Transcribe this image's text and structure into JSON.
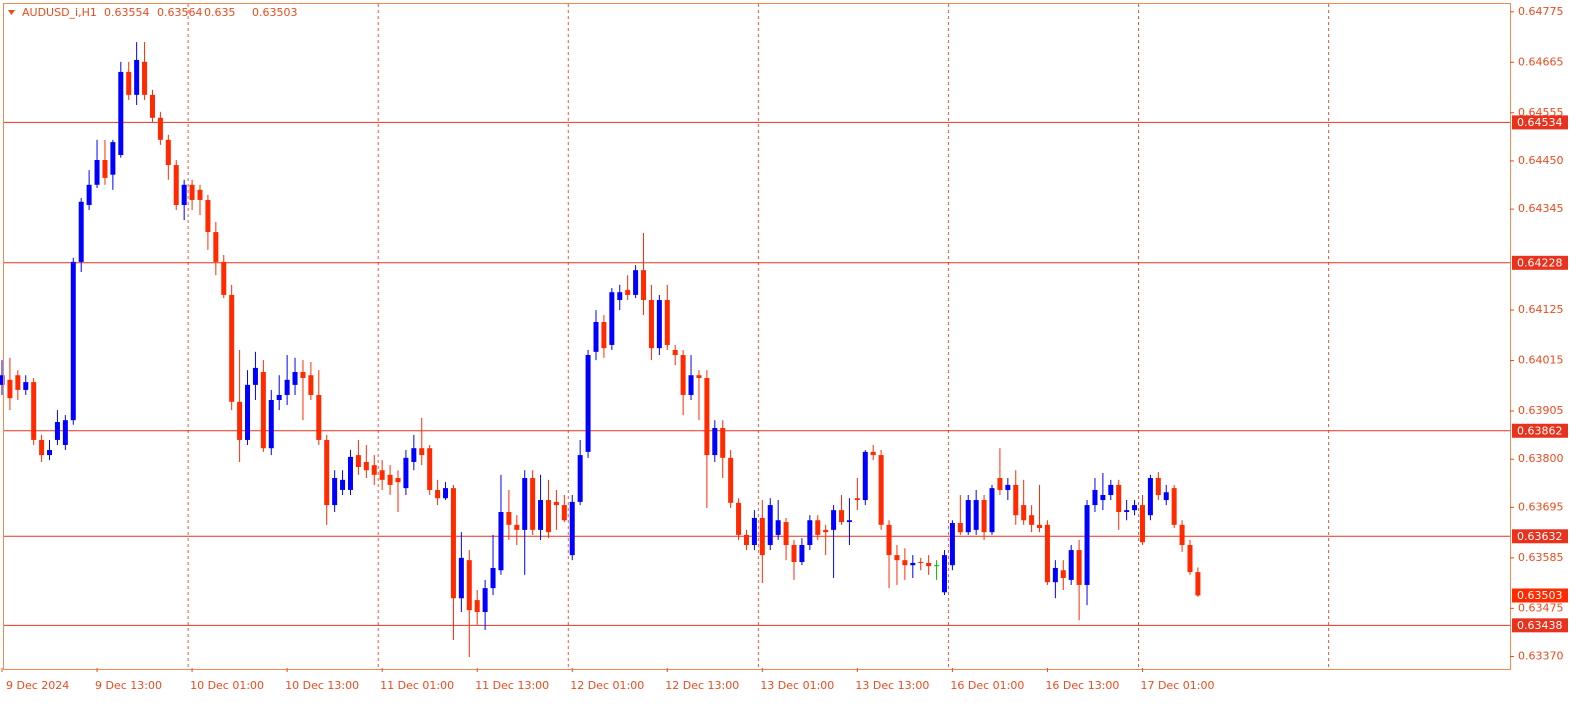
{
  "chart_data": {
    "type": "candlestick",
    "symbol": "AUDUSD_i,H1",
    "categories": [
      "9 Dec 2024",
      null,
      null,
      null,
      null,
      null,
      null,
      null,
      null,
      null,
      null,
      null,
      "9 Dec 13:00",
      null,
      null,
      null,
      null,
      null,
      null,
      null,
      null,
      null,
      null,
      null,
      "10 Dec 01:00",
      null,
      null,
      null,
      null,
      null,
      null,
      null,
      null,
      null,
      null,
      null,
      "10 Dec 13:00",
      null,
      null,
      null,
      null,
      null,
      null,
      null,
      null,
      null,
      null,
      null,
      "11 Dec 01:00",
      null,
      null,
      null,
      null,
      null,
      null,
      null,
      null,
      null,
      null,
      null,
      "11 Dec 13:00",
      null,
      null,
      null,
      null,
      null,
      null,
      null,
      null,
      null,
      null,
      null,
      "12 Dec 01:00",
      null,
      null,
      null,
      null,
      null,
      null,
      null,
      null,
      null,
      null,
      null,
      "12 Dec 13:00",
      null,
      null,
      null,
      null,
      null,
      null,
      null,
      null,
      null,
      null,
      null,
      "13 Dec 01:00",
      null,
      null,
      null,
      null,
      null,
      null,
      null,
      null,
      null,
      null,
      null,
      "13 Dec 13:00",
      null,
      null,
      null,
      null,
      null,
      null,
      null,
      null,
      null,
      null,
      null,
      "16 Dec 01:00",
      null,
      null,
      null,
      null,
      null,
      null,
      null,
      null,
      null,
      null,
      null,
      "16 Dec 13:00",
      null,
      null,
      null,
      null,
      null,
      null,
      null,
      null,
      null,
      null,
      null,
      "17 Dec 01:00",
      null,
      null,
      null,
      null,
      null,
      null,
      null
    ],
    "open": [
      0.63962,
      0.63973,
      0.63983,
      0.63951,
      0.63968,
      0.63842,
      0.63809,
      0.63842,
      0.63831,
      0.63885,
      0.6423,
      0.64354,
      0.64398,
      0.64452,
      0.6442,
      0.64463,
      0.64644,
      0.64594,
      0.64666,
      0.64594,
      0.64544,
      0.64496,
      0.64441,
      0.64354,
      0.64398,
      0.64387,
      0.64365,
      0.64295,
      0.6423,
      0.64158,
      0.63925,
      0.63842,
      0.63962,
      0.6399,
      0.63824,
      0.63929,
      0.6394,
      0.63962,
      0.6399,
      0.63983,
      0.6394,
      0.63842,
      0.637,
      0.63733,
      0.63733,
      0.63809,
      0.63794,
      0.63787,
      0.63776,
      0.63766,
      0.63759,
      0.63737,
      0.63794,
      0.63824,
      0.63824,
      0.63733,
      0.63715,
      0.63737,
      0.63497,
      0.6358,
      0.63493,
      0.63467,
      0.63519,
      0.63558,
      0.63685,
      0.63657,
      0.63646,
      0.63759,
      0.63646,
      0.63711,
      0.63707,
      0.637,
      0.63591,
      0.63707,
      0.63816,
      0.64034,
      0.64099,
      0.64049,
      0.64147,
      0.64169,
      0.64158,
      0.64212,
      0.64147,
      0.64042,
      0.64147,
      0.64038,
      0.64027,
      0.6394,
      0.63983,
      0.63977,
      0.63809,
      0.63868,
      0.63803,
      0.63705,
      0.63635,
      0.63613,
      0.63672,
      0.63613,
      0.63635,
      0.63663,
      0.63613,
      0.63576,
      0.63613,
      0.63667,
      0.63646,
      0.63646,
      0.63689,
      0.63663,
      0.63715,
      0.63711,
      0.63816,
      0.63809,
      0.63657,
      0.63591,
      0.6358,
      0.63569,
      0.63576,
      0.63574,
      0.63569,
      0.6351,
      0.63569,
      0.63661,
      0.63641,
      0.63646,
      0.63711,
      0.63641,
      0.63759,
      0.63733,
      0.63744,
      0.637,
      0.63678,
      0.63657,
      0.63657,
      0.63532,
      0.63558,
      0.63537,
      0.63602,
      0.63526,
      0.637,
      0.63711,
      0.63722,
      0.63744,
      0.63685,
      0.63689,
      0.637,
      0.63678,
      0.63759,
      0.63711,
      0.63737,
      0.63657,
      0.63613,
      0.63554
    ],
    "high": [
      0.64016,
      0.64021,
      0.63994,
      0.63983,
      0.63977,
      0.63853,
      0.63842,
      0.63907,
      0.63896,
      0.64239,
      0.64369,
      0.6443,
      0.64496,
      0.64496,
      0.64496,
      0.64666,
      0.64666,
      0.64709,
      0.64709,
      0.64605,
      0.64557,
      0.64507,
      0.64452,
      0.64409,
      0.64409,
      0.64398,
      0.64376,
      0.64317,
      0.64245,
      0.6418,
      0.64038,
      0.63994,
      0.64034,
      0.64016,
      0.63951,
      0.63983,
      0.64027,
      0.64021,
      0.64016,
      0.64012,
      0.63994,
      0.63853,
      0.63776,
      0.63776,
      0.6382,
      0.63842,
      0.63831,
      0.63809,
      0.63798,
      0.63787,
      0.63776,
      0.6382,
      0.63853,
      0.6389,
      0.63831,
      0.63755,
      0.6375,
      0.63744,
      0.63641,
      0.63602,
      0.63515,
      0.63537,
      0.63635,
      0.63766,
      0.63733,
      0.63678,
      0.63776,
      0.63776,
      0.63766,
      0.63755,
      0.63733,
      0.63722,
      0.63722,
      0.63842,
      0.64038,
      0.64125,
      0.64114,
      0.64173,
      0.6418,
      0.64201,
      0.64223,
      0.64293,
      0.6418,
      0.64158,
      0.6418,
      0.64049,
      0.64038,
      0.64027,
      0.63994,
      0.63994,
      0.63885,
      0.63885,
      0.6382,
      0.63715,
      0.63646,
      0.63689,
      0.63711,
      0.63715,
      0.63711,
      0.63672,
      0.63624,
      0.63628,
      0.63678,
      0.63678,
      0.63657,
      0.637,
      0.63722,
      0.63715,
      0.63759,
      0.6382,
      0.63831,
      0.6382,
      0.63667,
      0.63613,
      0.63606,
      0.63591,
      0.63585,
      0.63591,
      0.6358,
      0.63602,
      0.63667,
      0.63722,
      0.63722,
      0.63733,
      0.63722,
      0.63744,
      0.63824,
      0.63759,
      0.63776,
      0.63755,
      0.637,
      0.63744,
      0.63667,
      0.6358,
      0.6358,
      0.63613,
      0.63624,
      0.63711,
      0.63759,
      0.6377,
      0.63755,
      0.63755,
      0.63711,
      0.63711,
      0.63722,
      0.63766,
      0.63772,
      0.63744,
      0.63744,
      0.63667,
      0.63624,
      0.63564
    ],
    "low": [
      0.6394,
      0.63907,
      0.63929,
      0.6394,
      0.63831,
      0.63794,
      0.63798,
      0.63831,
      0.6382,
      0.63875,
      0.64208,
      0.64343,
      0.64391,
      0.64398,
      0.64387,
      0.64457,
      0.64583,
      0.64572,
      0.64583,
      0.64535,
      0.64485,
      0.64409,
      0.64343,
      0.64321,
      0.64343,
      0.64332,
      0.64256,
      0.64201,
      0.64151,
      0.63907,
      0.63794,
      0.63831,
      0.63929,
      0.63816,
      0.63809,
      0.63907,
      0.63918,
      0.6394,
      0.63885,
      0.63929,
      0.63831,
      0.63657,
      0.63685,
      0.63722,
      0.63722,
      0.63766,
      0.63759,
      0.63744,
      0.63733,
      0.63722,
      0.63685,
      0.63722,
      0.63776,
      0.63787,
      0.63722,
      0.637,
      0.63711,
      0.63406,
      0.63467,
      0.63369,
      0.63439,
      0.63428,
      0.63504,
      0.63548,
      0.63624,
      0.63613,
      0.63548,
      0.63635,
      0.63624,
      0.63628,
      0.63646,
      0.63663,
      0.6358,
      0.637,
      0.63803,
      0.64016,
      0.64021,
      0.64038,
      0.64125,
      0.64147,
      0.64151,
      0.64114,
      0.64016,
      0.64027,
      0.64038,
      0.64005,
      0.63896,
      0.63929,
      0.63885,
      0.63694,
      0.63794,
      0.63759,
      0.63694,
      0.63624,
      0.63602,
      0.63602,
      0.6353,
      0.63602,
      0.63624,
      0.6358,
      0.63537,
      0.63569,
      0.63602,
      0.63624,
      0.63591,
      0.63541,
      0.63657,
      0.63613,
      0.63689,
      0.637,
      0.63798,
      0.63646,
      0.63519,
      0.63526,
      0.63537,
      0.63541,
      0.63558,
      0.63548,
      0.63537,
      0.63504,
      0.63558,
      0.63635,
      0.63635,
      0.63635,
      0.63624,
      0.63635,
      0.63722,
      0.63711,
      0.63657,
      0.63657,
      0.63641,
      0.63641,
      0.63526,
      0.63497,
      0.63515,
      0.63526,
      0.63449,
      0.63482,
      0.63685,
      0.63689,
      0.63711,
      0.63646,
      0.63667,
      0.63678,
      0.63613,
      0.63667,
      0.63711,
      0.637,
      0.6365,
      0.63598,
      0.63548,
      0.635
    ],
    "close": [
      0.63983,
      0.63933,
      0.63951,
      0.63968,
      0.63842,
      0.63809,
      0.6382,
      0.63881,
      0.63885,
      0.6423,
      0.64361,
      0.64398,
      0.64452,
      0.64413,
      0.64491,
      0.64644,
      0.64594,
      0.6467,
      0.64594,
      0.64544,
      0.64496,
      0.64441,
      0.64354,
      0.64398,
      0.64365,
      0.64365,
      0.64295,
      0.6423,
      0.64158,
      0.63925,
      0.63842,
      0.63962,
      0.63999,
      0.63824,
      0.63929,
      0.6394,
      0.63973,
      0.6399,
      0.63977,
      0.6394,
      0.63842,
      0.637,
      0.63759,
      0.63755,
      0.63805,
      0.63783,
      0.63776,
      0.63766,
      0.63755,
      0.63744,
      0.6375,
      0.63803,
      0.63824,
      0.63809,
      0.63733,
      0.63715,
      0.63737,
      0.63497,
      0.63585,
      0.63471,
      0.63467,
      0.63519,
      0.63563,
      0.63685,
      0.63657,
      0.63646,
      0.63759,
      0.63646,
      0.63711,
      0.63641,
      0.637,
      0.63667,
      0.63707,
      0.63809,
      0.64027,
      0.64099,
      0.64042,
      0.64164,
      0.64164,
      0.64158,
      0.64212,
      0.64147,
      0.64042,
      0.64147,
      0.64049,
      0.64027,
      0.6394,
      0.63983,
      0.63977,
      0.63809,
      0.63868,
      0.63803,
      0.63705,
      0.63635,
      0.63613,
      0.63672,
      0.63591,
      0.637,
      0.63667,
      0.63613,
      0.63576,
      0.63613,
      0.63667,
      0.63635,
      0.63641,
      0.63689,
      0.63663,
      0.63667,
      0.63711,
      0.63816,
      0.63809,
      0.63657,
      0.63591,
      0.6358,
      0.63569,
      0.63574,
      0.63574,
      0.63567,
      0.63569,
      0.63591,
      0.63661,
      0.63641,
      0.63711,
      0.63711,
      0.63641,
      0.63737,
      0.63733,
      0.63744,
      0.63678,
      0.63667,
      0.63657,
      0.6365,
      0.63532,
      0.63563,
      0.63541,
      0.63602,
      0.63526,
      0.637,
      0.63733,
      0.63722,
      0.63744,
      0.63685,
      0.63689,
      0.637,
      0.63619,
      0.63759,
      0.63722,
      0.63728,
      0.63657,
      0.63613,
      0.63554,
      0.63503
    ],
    "up_color": "#0000ff",
    "down_color": "#ff2a00",
    "doji_color": "#00c000",
    "levels": [
      0.64534,
      0.64228,
      0.63862,
      0.63632,
      0.63438
    ],
    "level_color": "#e8321e",
    "ylim": [
      0.63345,
      0.64792
    ],
    "yticks": [
      0.64775,
      0.64665,
      0.64555,
      {
        "value": 0.6445,
        "label": "0.64450"
      },
      0.64345,
      0.64125,
      0.64015,
      0.63905,
      {
        "value": 0.638,
        "label": "0.63800"
      },
      0.63695,
      0.63585,
      0.63475,
      {
        "value": 0.6337,
        "label": "0.63370"
      }
    ]
  }
}
